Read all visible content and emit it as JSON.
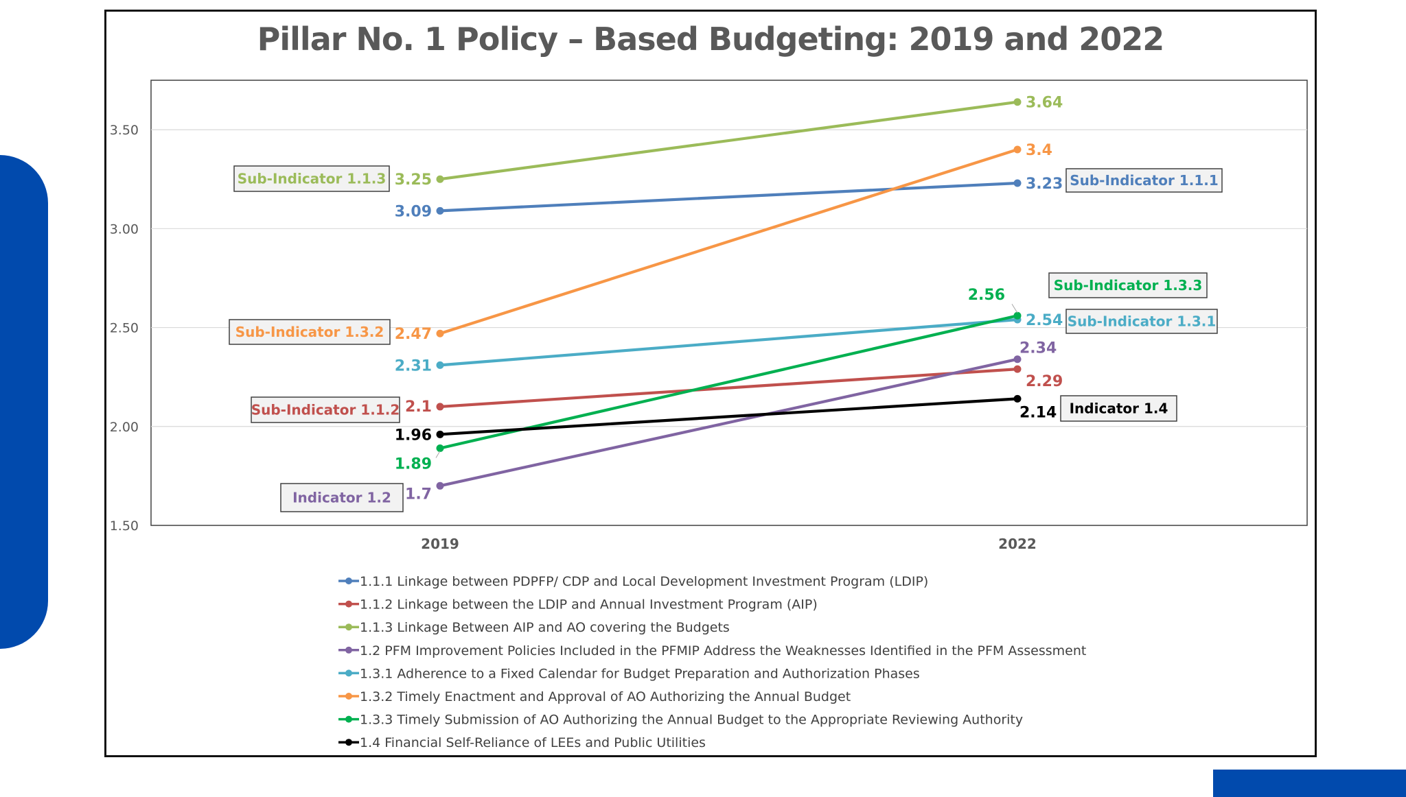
{
  "chart_data": {
    "type": "line",
    "title": "Pillar No. 1 Policy – Based Budgeting: 2019 and 2022",
    "xlabel": "",
    "ylabel": "",
    "categories": [
      "2019",
      "2022"
    ],
    "ylim": [
      1.5,
      3.75
    ],
    "yticks": [
      "1.50",
      "2.00",
      "2.50",
      "3.00",
      "3.50"
    ],
    "grid": true,
    "legend_position": "bottom",
    "series": [
      {
        "name": "1.1.1 Linkage between PDPFP/ CDP and Local Development Investment Program (LDIP)",
        "short": "Sub-Indicator 1.1.1",
        "labels": [
          "3.09",
          "3.23"
        ],
        "values": [
          3.09,
          3.23
        ],
        "color": "#4f7fbb"
      },
      {
        "name": "1.1.2  Linkage between the LDIP and Annual Investment Program (AIP)",
        "short": "Sub-Indicator 1.1.2",
        "labels": [
          "2.1",
          "2.29"
        ],
        "values": [
          2.1,
          2.29
        ],
        "color": "#c0504d"
      },
      {
        "name": "1.1.3 Linkage Between AIP and AO covering the Budgets",
        "short": "Sub-Indicator 1.1.3",
        "labels": [
          "3.25",
          "3.64"
        ],
        "values": [
          3.25,
          3.64
        ],
        "color": "#9bbb59"
      },
      {
        "name": "1.2 PFM Improvement Policies Included in the PFMIP Address the Weaknesses Identified in the PFM Assessment",
        "short": "Indicator 1.2",
        "labels": [
          "1.7",
          "2.34"
        ],
        "values": [
          1.7,
          2.34
        ],
        "color": "#8064a2"
      },
      {
        "name": "1.3.1 Adherence to a Fixed Calendar for Budget Preparation and Authorization Phases",
        "short": "Sub-Indicator 1.3.1",
        "labels": [
          "2.31",
          "2.54"
        ],
        "values": [
          2.31,
          2.54
        ],
        "color": "#4bacc6"
      },
      {
        "name": "1.3.2 Timely Enactment and Approval of AO Authorizing the Annual Budget",
        "short": "Sub-Indicator 1.3.2",
        "labels": [
          "2.47",
          "3.4"
        ],
        "values": [
          2.47,
          3.4
        ],
        "color": "#f79646"
      },
      {
        "name": "1.3.3 Timely Submission of AO Authorizing the Annual Budget to the Appropriate Reviewing Authority",
        "short": "Sub-Indicator 1.3.3",
        "labels": [
          "1.89",
          "2.56"
        ],
        "values": [
          1.89,
          2.56
        ],
        "color": "#00b050"
      },
      {
        "name": "1.4 Financial Self-Reliance of LEEs and Public Utilities",
        "short": "Indicator 1.4",
        "labels": [
          "1.96",
          "2.14"
        ],
        "values": [
          1.96,
          2.14
        ],
        "color": "#000000"
      }
    ]
  }
}
